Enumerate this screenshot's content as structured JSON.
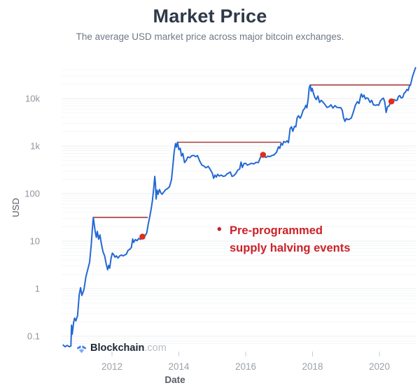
{
  "header": {
    "title": "Market Price",
    "subtitle": "The average USD market price across major bitcoin exchanges."
  },
  "annotation": {
    "bullet": "•",
    "line1": "Pre-programmed",
    "line2": "supply halving events"
  },
  "watermark": {
    "brand": "Blockchain",
    "suffix": ".com"
  },
  "colors": {
    "price_line": "#2368d4",
    "resistance_line": "#a83a3e",
    "halving_dot": "#e32b1e",
    "annotation_red": "#cb2127",
    "title_text": "#2e3949",
    "subtitle_text": "#6f7887",
    "tick_label": "#9aa1a9",
    "axis_title": "#565c66",
    "watermark_blue": "#3a78f2"
  },
  "chart_data": {
    "type": "line",
    "title": "Market Price",
    "xlabel": "Date",
    "ylabel": "USD",
    "y_scale": "log",
    "grid": "minor horizontal, very faint",
    "legend": "none",
    "x_range": [
      2010.5,
      2021.1
    ],
    "y_range": [
      0.04,
      47000
    ],
    "x_ticks": [
      2012,
      2014,
      2016,
      2018,
      2020
    ],
    "y_ticks": [
      {
        "value": 10000,
        "label": "10k"
      },
      {
        "value": 1000,
        "label": "1k"
      },
      {
        "value": 100,
        "label": "100"
      },
      {
        "value": 10,
        "label": "10"
      },
      {
        "value": 1,
        "label": "1"
      },
      {
        "value": 0.1,
        "label": "0.1"
      }
    ],
    "series": [
      {
        "name": "Average USD market price across major bitcoin exchanges",
        "color": "#2368d4",
        "points": [
          [
            2010.54,
            0.065
          ],
          [
            2010.6,
            0.06
          ],
          [
            2010.66,
            0.064
          ],
          [
            2010.72,
            0.06
          ],
          [
            2010.77,
            0.062
          ],
          [
            2010.79,
            0.17
          ],
          [
            2010.81,
            0.11
          ],
          [
            2010.85,
            0.19
          ],
          [
            2010.88,
            0.24
          ],
          [
            2010.92,
            0.21
          ],
          [
            2010.97,
            0.27
          ],
          [
            2011.02,
            0.75
          ],
          [
            2011.06,
            1.05
          ],
          [
            2011.1,
            0.72
          ],
          [
            2011.16,
            0.95
          ],
          [
            2011.22,
            1.8
          ],
          [
            2011.28,
            2.6
          ],
          [
            2011.33,
            3.6
          ],
          [
            2011.38,
            8.5
          ],
          [
            2011.41,
            17
          ],
          [
            2011.44,
            31.5
          ],
          [
            2011.47,
            22
          ],
          [
            2011.5,
            15.5
          ],
          [
            2011.53,
            12
          ],
          [
            2011.56,
            16
          ],
          [
            2011.6,
            11
          ],
          [
            2011.64,
            13.5
          ],
          [
            2011.68,
            9
          ],
          [
            2011.73,
            6
          ],
          [
            2011.78,
            4.9
          ],
          [
            2011.83,
            3.2
          ],
          [
            2011.87,
            2.5
          ],
          [
            2011.9,
            3.1
          ],
          [
            2011.93,
            2.7
          ],
          [
            2011.97,
            4.3
          ],
          [
            2012.01,
            5.6
          ],
          [
            2012.05,
            5.2
          ],
          [
            2012.09,
            4.6
          ],
          [
            2012.13,
            4.9
          ],
          [
            2012.18,
            4.4
          ],
          [
            2012.23,
            4.9
          ],
          [
            2012.28,
            5.1
          ],
          [
            2012.33,
            4.9
          ],
          [
            2012.38,
            5.1
          ],
          [
            2012.43,
            5.3
          ],
          [
            2012.48,
            6.4
          ],
          [
            2012.53,
            6.7
          ],
          [
            2012.58,
            7.4
          ],
          [
            2012.62,
            11.1
          ],
          [
            2012.65,
            9.4
          ],
          [
            2012.7,
            10.8
          ],
          [
            2012.75,
            10.2
          ],
          [
            2012.8,
            11.4
          ],
          [
            2012.85,
            10.9
          ],
          [
            2012.91,
            12.4
          ],
          [
            2012.95,
            13.4
          ],
          [
            2013.0,
            13.3
          ],
          [
            2013.04,
            15
          ],
          [
            2013.08,
            22
          ],
          [
            2013.13,
            33
          ],
          [
            2013.17,
            47
          ],
          [
            2013.21,
            72
          ],
          [
            2013.25,
            135
          ],
          [
            2013.28,
            230
          ],
          [
            2013.3,
            160
          ],
          [
            2013.32,
            77
          ],
          [
            2013.35,
            118
          ],
          [
            2013.38,
            97
          ],
          [
            2013.42,
            122
          ],
          [
            2013.46,
            104
          ],
          [
            2013.5,
            97
          ],
          [
            2013.55,
            108
          ],
          [
            2013.6,
            120
          ],
          [
            2013.66,
            127
          ],
          [
            2013.72,
            139
          ],
          [
            2013.78,
            197
          ],
          [
            2013.82,
            380
          ],
          [
            2013.86,
            750
          ],
          [
            2013.9,
            1130
          ],
          [
            2013.93,
            950
          ],
          [
            2013.96,
            1205
          ],
          [
            2014.0,
            840
          ],
          [
            2014.04,
            900
          ],
          [
            2014.08,
            620
          ],
          [
            2014.12,
            700
          ],
          [
            2014.17,
            450
          ],
          [
            2014.22,
            500
          ],
          [
            2014.27,
            590
          ],
          [
            2014.33,
            570
          ],
          [
            2014.38,
            620
          ],
          [
            2014.44,
            640
          ],
          [
            2014.5,
            600
          ],
          [
            2014.56,
            630
          ],
          [
            2014.62,
            490
          ],
          [
            2014.69,
            400
          ],
          [
            2014.75,
            380
          ],
          [
            2014.81,
            350
          ],
          [
            2014.88,
            375
          ],
          [
            2014.94,
            320
          ],
          [
            2015.0,
            270
          ],
          [
            2015.04,
            210
          ],
          [
            2015.08,
            245
          ],
          [
            2015.12,
            222
          ],
          [
            2015.16,
            255
          ],
          [
            2015.21,
            235
          ],
          [
            2015.27,
            245
          ],
          [
            2015.33,
            230
          ],
          [
            2015.39,
            237
          ],
          [
            2015.44,
            260
          ],
          [
            2015.49,
            270
          ],
          [
            2015.54,
            285
          ],
          [
            2015.59,
            230
          ],
          [
            2015.64,
            237
          ],
          [
            2015.7,
            262
          ],
          [
            2015.76,
            310
          ],
          [
            2015.82,
            330
          ],
          [
            2015.86,
            460
          ],
          [
            2015.9,
            355
          ],
          [
            2015.95,
            430
          ],
          [
            2016.0,
            435
          ],
          [
            2016.05,
            395
          ],
          [
            2016.11,
            415
          ],
          [
            2016.17,
            435
          ],
          [
            2016.24,
            420
          ],
          [
            2016.31,
            455
          ],
          [
            2016.38,
            450
          ],
          [
            2016.44,
            575
          ],
          [
            2016.49,
            690
          ],
          [
            2016.52,
            655
          ],
          [
            2016.57,
            600
          ],
          [
            2016.61,
            575
          ],
          [
            2016.66,
            615
          ],
          [
            2016.72,
            600
          ],
          [
            2016.78,
            630
          ],
          [
            2016.85,
            655
          ],
          [
            2016.92,
            735
          ],
          [
            2016.98,
            960
          ],
          [
            2017.02,
            890
          ],
          [
            2017.06,
            1150
          ],
          [
            2017.1,
            1050
          ],
          [
            2017.14,
            1250
          ],
          [
            2017.19,
            1200
          ],
          [
            2017.24,
            1290
          ],
          [
            2017.28,
            1180
          ],
          [
            2017.33,
            2350
          ],
          [
            2017.37,
            2550
          ],
          [
            2017.41,
            2050
          ],
          [
            2017.46,
            2600
          ],
          [
            2017.5,
            2550
          ],
          [
            2017.54,
            3950
          ],
          [
            2017.58,
            4350
          ],
          [
            2017.63,
            3850
          ],
          [
            2017.67,
            4400
          ],
          [
            2017.72,
            5700
          ],
          [
            2017.76,
            6100
          ],
          [
            2017.8,
            7200
          ],
          [
            2017.83,
            6400
          ],
          [
            2017.87,
            9900
          ],
          [
            2017.9,
            16800
          ],
          [
            2017.93,
            19300
          ],
          [
            2017.96,
            14200
          ],
          [
            2017.99,
            16400
          ],
          [
            2018.03,
            12800
          ],
          [
            2018.07,
            10500
          ],
          [
            2018.11,
            9500
          ],
          [
            2018.16,
            11300
          ],
          [
            2018.21,
            8300
          ],
          [
            2018.26,
            9200
          ],
          [
            2018.31,
            8400
          ],
          [
            2018.37,
            7500
          ],
          [
            2018.43,
            6500
          ],
          [
            2018.49,
            6700
          ],
          [
            2018.55,
            7400
          ],
          [
            2018.61,
            6300
          ],
          [
            2018.67,
            7100
          ],
          [
            2018.73,
            6500
          ],
          [
            2018.79,
            6450
          ],
          [
            2018.85,
            6400
          ],
          [
            2018.89,
            5600
          ],
          [
            2018.93,
            3900
          ],
          [
            2018.97,
            3300
          ],
          [
            2019.01,
            3800
          ],
          [
            2019.06,
            3600
          ],
          [
            2019.11,
            3700
          ],
          [
            2019.16,
            3900
          ],
          [
            2019.22,
            5200
          ],
          [
            2019.28,
            7200
          ],
          [
            2019.34,
            8600
          ],
          [
            2019.39,
            7900
          ],
          [
            2019.44,
            11400
          ],
          [
            2019.46,
            12500
          ],
          [
            2019.5,
            10700
          ],
          [
            2019.54,
            11800
          ],
          [
            2019.58,
            9800
          ],
          [
            2019.62,
            10300
          ],
          [
            2019.66,
            10100
          ],
          [
            2019.72,
            8300
          ],
          [
            2019.77,
            9200
          ],
          [
            2019.82,
            7400
          ],
          [
            2019.88,
            7200
          ],
          [
            2019.93,
            7400
          ],
          [
            2019.98,
            7200
          ],
          [
            2020.03,
            8900
          ],
          [
            2020.08,
            9800
          ],
          [
            2020.12,
            10200
          ],
          [
            2020.16,
            8600
          ],
          [
            2020.2,
            5100
          ],
          [
            2020.24,
            6700
          ],
          [
            2020.28,
            6900
          ],
          [
            2020.32,
            7800
          ],
          [
            2020.36,
            8700
          ],
          [
            2020.41,
            9500
          ],
          [
            2020.45,
            9400
          ],
          [
            2020.49,
            9100
          ],
          [
            2020.53,
            9200
          ],
          [
            2020.57,
            11000
          ],
          [
            2020.61,
            11600
          ],
          [
            2020.65,
            10300
          ],
          [
            2020.7,
            10600
          ],
          [
            2020.74,
            13000
          ],
          [
            2020.78,
            13600
          ],
          [
            2020.82,
            15500
          ],
          [
            2020.86,
            14800
          ],
          [
            2020.9,
            18500
          ],
          [
            2020.93,
            19200
          ],
          [
            2020.96,
            23500
          ],
          [
            2020.99,
            29000
          ],
          [
            2021.02,
            33500
          ],
          [
            2021.05,
            38500
          ],
          [
            2021.08,
            44500
          ]
        ]
      }
    ],
    "halving_events": {
      "description_line1": "Pre-programmed",
      "description_line2": "supply halving events",
      "dot_color": "#e32b1e",
      "points": [
        [
          2012.91,
          12.4
        ],
        [
          2016.52,
          655
        ],
        [
          2020.36,
          8700
        ]
      ]
    },
    "resistance_lines": {
      "color": "#a83a3e",
      "segments": [
        {
          "from_year": 2011.44,
          "to_year": 2013.07,
          "value": 31.5
        },
        {
          "from_year": 2013.96,
          "to_year": 2017.06,
          "value": 1205
        },
        {
          "from_year": 2017.93,
          "to_year": 2020.93,
          "value": 19300
        }
      ]
    }
  }
}
